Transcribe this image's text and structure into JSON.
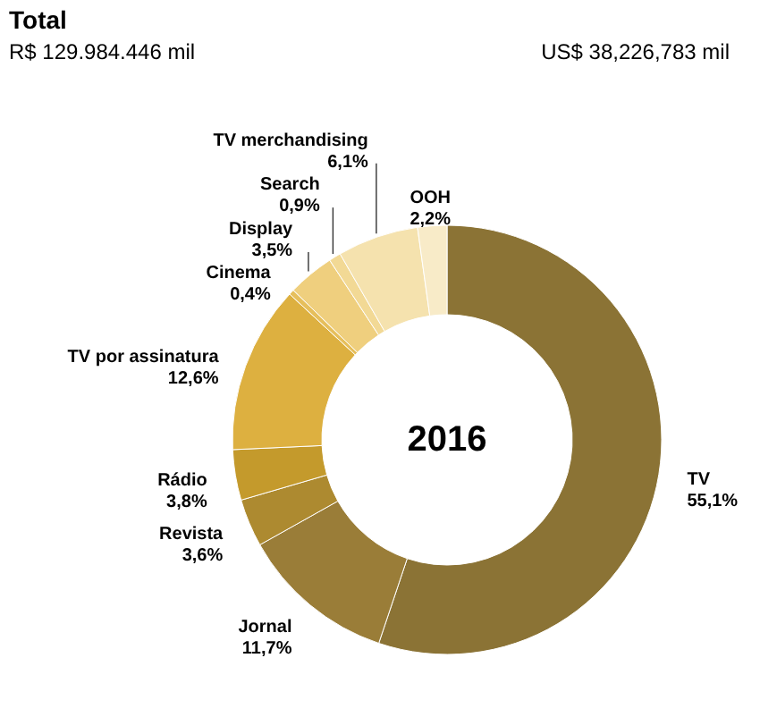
{
  "chart_data": {
    "type": "donut",
    "title": "Total",
    "subtitle": "R$ 129.984.446 mil",
    "annotations": [
      "US$ 38,226,783 mil",
      "2016"
    ],
    "categories": [
      "TV",
      "Jornal",
      "Revista",
      "Rádio",
      "TV por assinatura",
      "Cinema",
      "Display",
      "Search",
      "TV merchandising",
      "OOH"
    ],
    "values": [
      55.1,
      11.7,
      3.6,
      3.8,
      12.6,
      0.4,
      3.5,
      0.9,
      6.1,
      2.2
    ],
    "value_labels": [
      "55,1%",
      "11,7%",
      "3,6%",
      "3,8%",
      "12,6%",
      "0,4%",
      "3,5%",
      "0,9%",
      "6,1%",
      "2,2%"
    ],
    "colors": [
      "#8b7335",
      "#9a7d38",
      "#ad8a30",
      "#c49a2c",
      "#ddb040",
      "#e6bf5c",
      "#efcf7e",
      "#f2d995",
      "#f5e2ae",
      "#f8ebc8"
    ],
    "legend": false
  }
}
